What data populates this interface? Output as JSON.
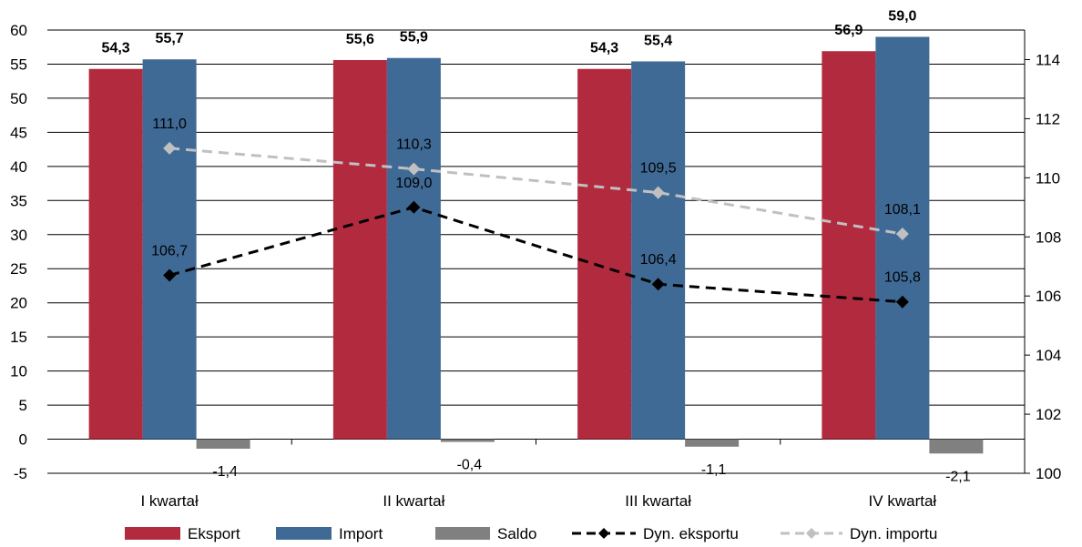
{
  "chart_data": {
    "type": "bar",
    "categories": [
      "I kwartał",
      "II kwartał",
      "III kwartał",
      "IV kwartał"
    ],
    "series": [
      {
        "name": "Eksport",
        "type": "bar",
        "axis": "left",
        "color": "#B22A3E",
        "values": [
          54.3,
          55.6,
          54.3,
          56.9
        ],
        "labels": [
          "54,3",
          "55,6",
          "54,3",
          "56,9"
        ]
      },
      {
        "name": "Import",
        "type": "bar",
        "axis": "left",
        "color": "#3F6A96",
        "values": [
          55.7,
          55.9,
          55.4,
          59.0
        ],
        "labels": [
          "55,7",
          "55,9",
          "55,4",
          "59,0"
        ]
      },
      {
        "name": "Saldo",
        "type": "bar",
        "axis": "left",
        "color": "#808080",
        "values": [
          -1.4,
          -0.4,
          -1.1,
          -2.1
        ],
        "labels": [
          "-1,4",
          "-0,4",
          "-1,1",
          "-2,1"
        ]
      },
      {
        "name": "Dyn. eksportu",
        "type": "line",
        "axis": "right",
        "color": "#000000",
        "values": [
          106.7,
          109.0,
          106.4,
          105.8
        ],
        "labels": [
          "106,7",
          "109,0",
          "106,4",
          "105,8"
        ]
      },
      {
        "name": "Dyn. importu",
        "type": "line",
        "axis": "right",
        "color": "#C0C0C0",
        "values": [
          111.0,
          110.3,
          109.5,
          108.1
        ],
        "labels": [
          "111,0",
          "110,3",
          "109,5",
          "108,1"
        ]
      }
    ],
    "y_left": {
      "min": -5,
      "max": 60,
      "step": 5,
      "ticks": [
        "-5",
        "0",
        "5",
        "10",
        "15",
        "20",
        "25",
        "30",
        "35",
        "40",
        "45",
        "50",
        "55",
        "60"
      ]
    },
    "y_right": {
      "min": 100,
      "max": 115,
      "step": 2,
      "ticks": [
        "100",
        "102",
        "104",
        "106",
        "108",
        "110",
        "112",
        "114"
      ]
    },
    "grid": true,
    "legend": "bottom",
    "title": "",
    "xlabel": "",
    "ylabel": ""
  }
}
